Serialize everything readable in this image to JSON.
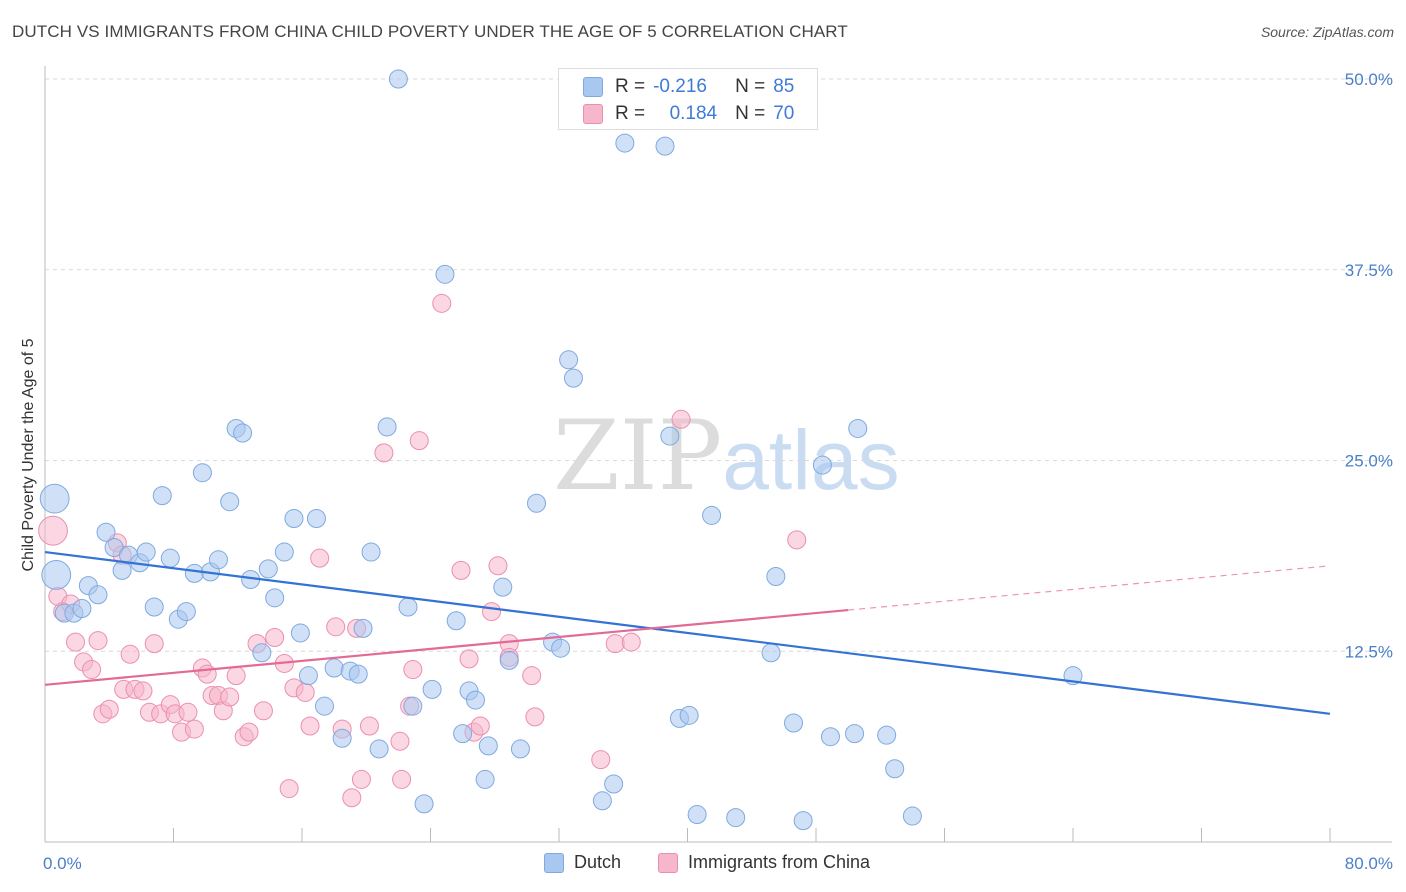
{
  "header": {
    "title": "DUTCH VS IMMIGRANTS FROM CHINA CHILD POVERTY UNDER THE AGE OF 5 CORRELATION CHART",
    "source": "Source: ZipAtlas.com"
  },
  "watermark": {
    "zip": "ZIP",
    "atlas": "atlas"
  },
  "legend": {
    "rows": [
      {
        "r_key": "R =",
        "r_value": "-0.216",
        "n_key": "N =",
        "n_value": "85"
      },
      {
        "r_key": "R =",
        "r_value": "0.184",
        "n_key": "N =",
        "n_value": "70"
      }
    ]
  },
  "bottom_legend": {
    "dutch": "Dutch",
    "china": "Immigrants from China"
  },
  "colors": {
    "dutch_fill": "#a9c8f0",
    "dutch_stroke": "#7fa9e0",
    "dutch_line": "#3273d3",
    "china_fill": "#f6b6cb",
    "china_stroke": "#ec8fae",
    "china_line": "#e26a95",
    "tick_text": "#4a7fc8",
    "grid": "#d9d9d9"
  },
  "chart_data": {
    "type": "scatter",
    "title": "DUTCH VS IMMIGRANTS FROM CHINA CHILD POVERTY UNDER THE AGE OF 5 CORRELATION CHART",
    "xlabel": "",
    "ylabel": "Child Poverty Under the Age of 5",
    "xlim": [
      0,
      80
    ],
    "ylim": [
      0,
      50
    ],
    "x_tick_labels": [
      "0.0%",
      "80.0%"
    ],
    "y_ticks": [
      12.5,
      25.0,
      37.5,
      50.0
    ],
    "y_tick_labels": [
      "12.5%",
      "25.0%",
      "37.5%",
      "50.0%"
    ],
    "grid": "horizontal dashed",
    "legend_position": "top-center",
    "series": [
      {
        "name": "Dutch",
        "R": -0.216,
        "N": 85,
        "trend": {
          "x": [
            0,
            80
          ],
          "y": [
            19.0,
            8.4
          ]
        },
        "points": [
          [
            0.6,
            22.5,
            1.6
          ],
          [
            0.7,
            17.5,
            1.6
          ],
          [
            1.2,
            15.0,
            1.0
          ],
          [
            1.8,
            15.0,
            1.0
          ],
          [
            2.3,
            15.3,
            1.0
          ],
          [
            2.7,
            16.8,
            1.0
          ],
          [
            3.3,
            16.2,
            1.0
          ],
          [
            3.8,
            20.3,
            1.0
          ],
          [
            4.3,
            19.3,
            1.0
          ],
          [
            4.8,
            17.8,
            1.0
          ],
          [
            5.2,
            18.8,
            1.0
          ],
          [
            5.9,
            18.3,
            1.0
          ],
          [
            6.3,
            19.0,
            1.0
          ],
          [
            6.8,
            15.4,
            1.0
          ],
          [
            7.3,
            22.7,
            1.0
          ],
          [
            7.8,
            18.6,
            1.0
          ],
          [
            8.3,
            14.6,
            1.0
          ],
          [
            8.8,
            15.1,
            1.0
          ],
          [
            9.3,
            17.6,
            1.0
          ],
          [
            9.8,
            24.2,
            1.0
          ],
          [
            10.3,
            17.7,
            1.0
          ],
          [
            10.8,
            18.5,
            1.0
          ],
          [
            11.5,
            22.3,
            1.0
          ],
          [
            11.9,
            27.1,
            1.0
          ],
          [
            12.3,
            26.8,
            1.0
          ],
          [
            12.8,
            17.2,
            1.0
          ],
          [
            13.5,
            12.4,
            1.0
          ],
          [
            13.9,
            17.9,
            1.0
          ],
          [
            14.3,
            16.0,
            1.0
          ],
          [
            14.9,
            19.0,
            1.0
          ],
          [
            15.5,
            21.2,
            1.0
          ],
          [
            15.9,
            13.7,
            1.0
          ],
          [
            16.4,
            10.9,
            1.0
          ],
          [
            16.9,
            21.2,
            1.0
          ],
          [
            17.4,
            8.9,
            1.0
          ],
          [
            18.0,
            11.4,
            1.0
          ],
          [
            18.5,
            6.8,
            1.0
          ],
          [
            19.0,
            11.2,
            1.0
          ],
          [
            19.5,
            11.0,
            1.0
          ],
          [
            19.8,
            14.0,
            1.0
          ],
          [
            20.3,
            19.0,
            1.0
          ],
          [
            20.8,
            6.1,
            1.0
          ],
          [
            21.3,
            27.2,
            1.0
          ],
          [
            22.0,
            50.0,
            1.0
          ],
          [
            22.6,
            15.4,
            1.0
          ],
          [
            22.9,
            8.9,
            1.0
          ],
          [
            23.6,
            2.5,
            1.0
          ],
          [
            24.1,
            10.0,
            1.0
          ],
          [
            24.9,
            37.2,
            1.0
          ],
          [
            25.6,
            14.5,
            1.0
          ],
          [
            26.0,
            7.1,
            1.0
          ],
          [
            26.4,
            9.9,
            1.0
          ],
          [
            26.8,
            9.3,
            1.0
          ],
          [
            27.4,
            4.1,
            1.0
          ],
          [
            27.6,
            6.3,
            1.0
          ],
          [
            28.5,
            16.7,
            1.0
          ],
          [
            28.9,
            11.9,
            1.0
          ],
          [
            29.6,
            6.1,
            1.0
          ],
          [
            30.6,
            22.2,
            1.0
          ],
          [
            31.6,
            13.1,
            1.0
          ],
          [
            32.1,
            12.7,
            1.0
          ],
          [
            32.6,
            31.6,
            1.0
          ],
          [
            32.9,
            30.4,
            1.0
          ],
          [
            34.7,
            2.7,
            1.0
          ],
          [
            35.4,
            3.8,
            1.0
          ],
          [
            36.1,
            45.8,
            1.0
          ],
          [
            38.6,
            45.6,
            1.0
          ],
          [
            38.9,
            26.6,
            1.0
          ],
          [
            39.5,
            8.1,
            1.0
          ],
          [
            40.1,
            8.3,
            1.0
          ],
          [
            40.6,
            1.8,
            1.0
          ],
          [
            41.5,
            21.4,
            1.0
          ],
          [
            43.0,
            1.6,
            1.0
          ],
          [
            45.2,
            12.4,
            1.0
          ],
          [
            45.5,
            17.4,
            1.0
          ],
          [
            46.6,
            7.8,
            1.0
          ],
          [
            47.2,
            1.4,
            1.0
          ],
          [
            48.4,
            24.7,
            1.0
          ],
          [
            48.9,
            6.9,
            1.0
          ],
          [
            50.4,
            7.1,
            1.0
          ],
          [
            50.6,
            27.1,
            1.0
          ],
          [
            52.4,
            7.0,
            1.0
          ],
          [
            52.9,
            4.8,
            1.0
          ],
          [
            54.0,
            1.7,
            1.0
          ],
          [
            64.0,
            10.9,
            1.0
          ]
        ]
      },
      {
        "name": "Immigrants from China",
        "R": 0.184,
        "N": 70,
        "trend": {
          "x": [
            0,
            50
          ],
          "y": [
            10.3,
            15.2
          ]
        },
        "trend_dashed": {
          "x": [
            50,
            80
          ],
          "y": [
            15.2,
            18.1
          ]
        },
        "points": [
          [
            0.5,
            20.4,
            1.6
          ],
          [
            0.8,
            16.1,
            1.0
          ],
          [
            1.1,
            15.1,
            1.0
          ],
          [
            1.6,
            15.6,
            1.0
          ],
          [
            1.9,
            13.1,
            1.0
          ],
          [
            2.4,
            11.8,
            1.0
          ],
          [
            2.9,
            11.3,
            1.0
          ],
          [
            3.3,
            13.2,
            1.0
          ],
          [
            3.6,
            8.4,
            1.0
          ],
          [
            4.0,
            8.7,
            1.0
          ],
          [
            4.5,
            19.6,
            1.0
          ],
          [
            4.8,
            18.8,
            1.0
          ],
          [
            4.9,
            10.0,
            1.0
          ],
          [
            5.3,
            12.3,
            1.0
          ],
          [
            5.6,
            10.0,
            1.0
          ],
          [
            6.1,
            9.9,
            1.0
          ],
          [
            6.5,
            8.5,
            1.0
          ],
          [
            6.8,
            13.0,
            1.0
          ],
          [
            7.2,
            8.4,
            1.0
          ],
          [
            7.8,
            9.0,
            1.0
          ],
          [
            8.1,
            8.4,
            1.0
          ],
          [
            8.5,
            7.2,
            1.0
          ],
          [
            8.9,
            8.5,
            1.0
          ],
          [
            9.3,
            7.4,
            1.0
          ],
          [
            9.8,
            11.4,
            1.0
          ],
          [
            10.1,
            11.0,
            1.0
          ],
          [
            10.4,
            9.6,
            1.0
          ],
          [
            10.8,
            9.6,
            1.0
          ],
          [
            11.1,
            8.6,
            1.0
          ],
          [
            11.5,
            9.5,
            1.0
          ],
          [
            11.9,
            10.9,
            1.0
          ],
          [
            12.4,
            6.9,
            1.0
          ],
          [
            12.7,
            7.2,
            1.0
          ],
          [
            13.2,
            13.0,
            1.0
          ],
          [
            13.6,
            8.6,
            1.0
          ],
          [
            14.3,
            13.4,
            1.0
          ],
          [
            14.9,
            11.7,
            1.0
          ],
          [
            15.2,
            3.5,
            1.0
          ],
          [
            15.5,
            10.1,
            1.0
          ],
          [
            16.2,
            9.8,
            1.0
          ],
          [
            16.5,
            7.6,
            1.0
          ],
          [
            17.1,
            18.6,
            1.0
          ],
          [
            18.1,
            14.1,
            1.0
          ],
          [
            18.5,
            7.4,
            1.0
          ],
          [
            19.1,
            2.9,
            1.0
          ],
          [
            19.4,
            14.0,
            1.0
          ],
          [
            19.7,
            4.1,
            1.0
          ],
          [
            20.2,
            7.6,
            1.0
          ],
          [
            21.1,
            25.5,
            1.0
          ],
          [
            22.1,
            6.6,
            1.0
          ],
          [
            22.2,
            4.1,
            1.0
          ],
          [
            22.7,
            8.9,
            1.0
          ],
          [
            22.9,
            11.3,
            1.0
          ],
          [
            23.3,
            26.3,
            1.0
          ],
          [
            24.7,
            35.3,
            1.0
          ],
          [
            25.9,
            17.8,
            1.0
          ],
          [
            26.4,
            12.0,
            1.0
          ],
          [
            26.7,
            7.2,
            1.0
          ],
          [
            27.1,
            7.6,
            1.0
          ],
          [
            27.8,
            15.1,
            1.0
          ],
          [
            28.2,
            18.1,
            1.0
          ],
          [
            28.9,
            13.0,
            1.0
          ],
          [
            28.9,
            12.1,
            1.0
          ],
          [
            30.3,
            10.9,
            1.0
          ],
          [
            30.5,
            8.2,
            1.0
          ],
          [
            34.6,
            5.4,
            1.0
          ],
          [
            35.5,
            13.0,
            1.0
          ],
          [
            36.5,
            13.1,
            1.0
          ],
          [
            39.6,
            27.7,
            1.0
          ],
          [
            46.8,
            19.8,
            1.0
          ]
        ]
      }
    ]
  }
}
